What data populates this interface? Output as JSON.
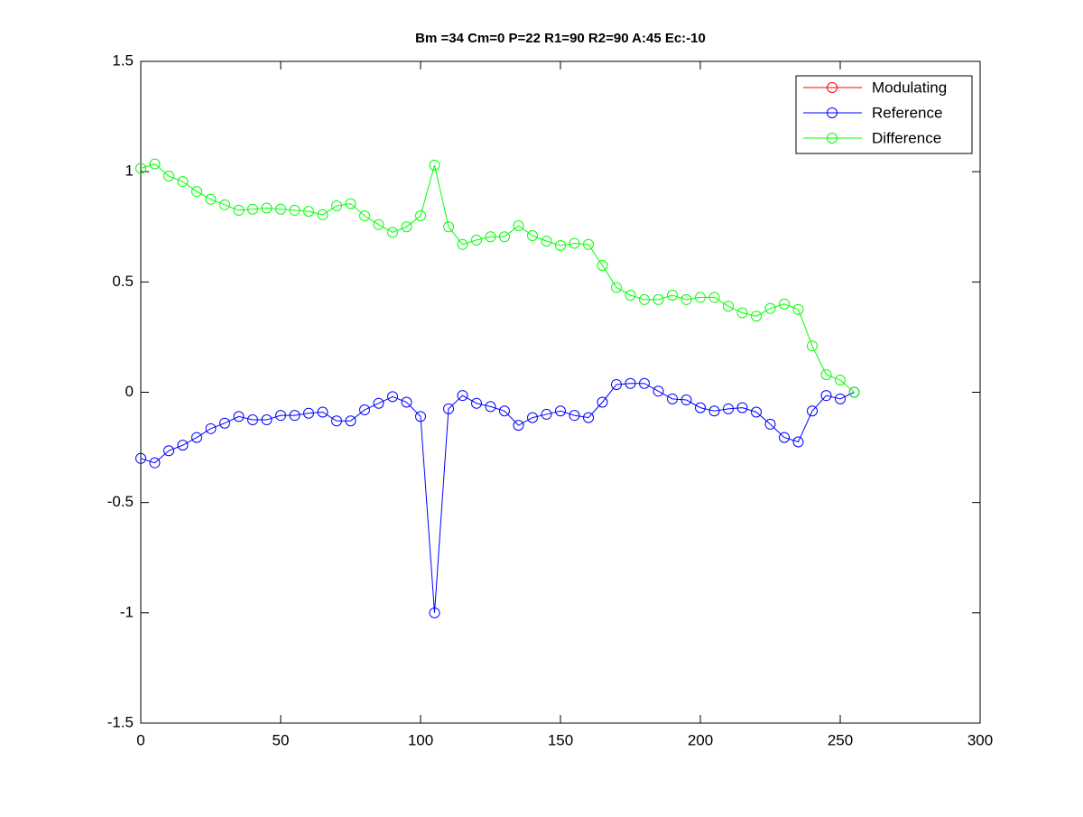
{
  "chart_data": {
    "type": "line",
    "title": "Bm =34  Cm=0  P=22  R1=90  R2=90  A:45  Ec:-10",
    "x": [
      0,
      5,
      10,
      15,
      20,
      25,
      30,
      35,
      40,
      45,
      50,
      55,
      60,
      65,
      70,
      75,
      80,
      85,
      90,
      95,
      100,
      105,
      110,
      115,
      120,
      125,
      130,
      135,
      140,
      145,
      150,
      155,
      160,
      165,
      170,
      175,
      180,
      185,
      190,
      195,
      200,
      205,
      210,
      215,
      220,
      225,
      230,
      235,
      240,
      245,
      250,
      255
    ],
    "series": [
      {
        "name": "Modulating",
        "color": "#ff0000",
        "marker": "circle",
        "values": [
          null,
          null,
          null,
          null,
          null,
          null,
          null,
          null,
          null,
          null,
          null,
          null,
          null,
          null,
          null,
          null,
          null,
          null,
          null,
          null,
          null,
          null,
          null,
          null,
          null,
          null,
          null,
          null,
          null,
          null,
          null,
          null,
          null,
          null,
          null,
          null,
          null,
          null,
          null,
          null,
          null,
          null,
          null,
          null,
          null,
          null,
          null,
          null,
          null,
          null,
          null,
          null
        ]
      },
      {
        "name": "Reference",
        "color": "#0000ff",
        "marker": "circle",
        "values": [
          -0.3,
          -0.32,
          -0.265,
          -0.24,
          -0.205,
          -0.165,
          -0.14,
          -0.11,
          -0.125,
          -0.125,
          -0.105,
          -0.105,
          -0.095,
          -0.09,
          -0.13,
          -0.13,
          -0.08,
          -0.05,
          -0.02,
          -0.045,
          -0.11,
          -1.0,
          -0.075,
          -0.015,
          -0.05,
          -0.065,
          -0.085,
          -0.15,
          -0.115,
          -0.1,
          -0.085,
          -0.105,
          -0.115,
          -0.045,
          0.035,
          0.04,
          0.04,
          0.005,
          -0.03,
          -0.035,
          -0.07,
          -0.085,
          -0.075,
          -0.07,
          -0.09,
          -0.145,
          -0.205,
          -0.225,
          -0.085,
          -0.015,
          -0.03,
          0
        ]
      },
      {
        "name": "Difference",
        "color": "#00ff00",
        "marker": "circle",
        "values": [
          1.015,
          1.035,
          0.98,
          0.955,
          0.91,
          0.875,
          0.85,
          0.825,
          0.83,
          0.835,
          0.83,
          0.825,
          0.82,
          0.805,
          0.845,
          0.855,
          0.8,
          0.76,
          0.725,
          0.75,
          0.8,
          1.03,
          0.75,
          0.67,
          0.69,
          0.705,
          0.705,
          0.755,
          0.71,
          0.685,
          0.665,
          0.675,
          0.67,
          0.575,
          0.475,
          0.44,
          0.42,
          0.42,
          0.44,
          0.42,
          0.43,
          0.43,
          0.39,
          0.36,
          0.345,
          0.38,
          0.4,
          0.375,
          0.21,
          0.08,
          0.055,
          0
        ]
      }
    ],
    "xlim": [
      0,
      300
    ],
    "xticks": [
      0,
      50,
      100,
      150,
      200,
      250,
      300
    ],
    "ylim": [
      -1.5,
      1.5
    ],
    "yticks": [
      -1.5,
      -1,
      -0.5,
      0,
      0.5,
      1,
      1.5
    ],
    "grid": false,
    "legend": "upper right"
  }
}
